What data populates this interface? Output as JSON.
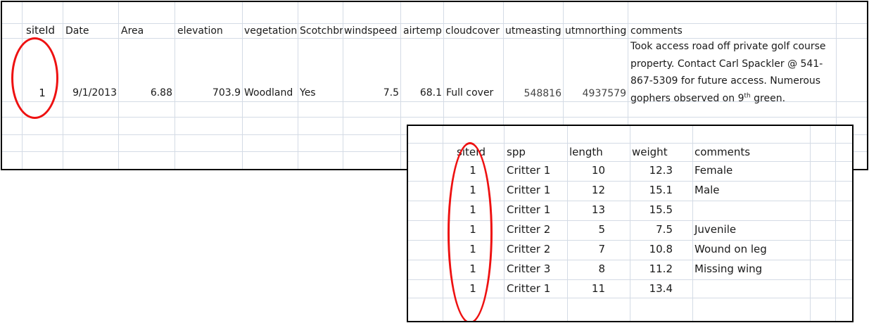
{
  "site_table": {
    "headers": [
      "siteId",
      "Date",
      "Area",
      "elevation",
      "vegetationT",
      "Scotchbr",
      "windspeed",
      "airtemp",
      "cloudcover",
      "utmeasting",
      "utmnorthing",
      "comments"
    ],
    "row": {
      "siteId": "1",
      "date": "9/1/2013",
      "area": "6.88",
      "elevation": "703.9",
      "vegetation": "Woodland",
      "scotchbr": "Yes",
      "windspeed": "7.5",
      "airtemp": "68.1",
      "cloudcover": "Full cover",
      "utmeasting": "548816",
      "utmnorthing": "4937579",
      "comment_lines": [
        "Took access road off private golf course",
        "property.  Contact Carl Spackler @ 541-",
        "867-5309 for future access.  Numerous"
      ],
      "comment_last_pre": "gophers observed on 9",
      "comment_last_sup": "th",
      "comment_last_post": " green."
    }
  },
  "observations_table": {
    "headers": [
      "siteId",
      "spp",
      "length",
      "weight",
      "comments"
    ],
    "rows": [
      {
        "siteId": "1",
        "spp": "Critter 1",
        "length": "10",
        "weight": "12.3",
        "comments": "Female"
      },
      {
        "siteId": "1",
        "spp": "Critter 1",
        "length": "12",
        "weight": "15.1",
        "comments": "Male"
      },
      {
        "siteId": "1",
        "spp": "Critter 1",
        "length": "13",
        "weight": "15.5",
        "comments": ""
      },
      {
        "siteId": "1",
        "spp": "Critter 2",
        "length": "5",
        "weight": "7.5",
        "comments": "Juvenile"
      },
      {
        "siteId": "1",
        "spp": "Critter 2",
        "length": "7",
        "weight": "10.8",
        "comments": "Wound on leg"
      },
      {
        "siteId": "1",
        "spp": "Critter 3",
        "length": "8",
        "weight": "11.2",
        "comments": "Missing wing"
      },
      {
        "siteId": "1",
        "spp": "Critter 1",
        "length": "11",
        "weight": "13.4",
        "comments": ""
      }
    ]
  },
  "colors": {
    "highlight": "#ee1111",
    "grid": "#d4dbe5",
    "border": "#000000"
  }
}
